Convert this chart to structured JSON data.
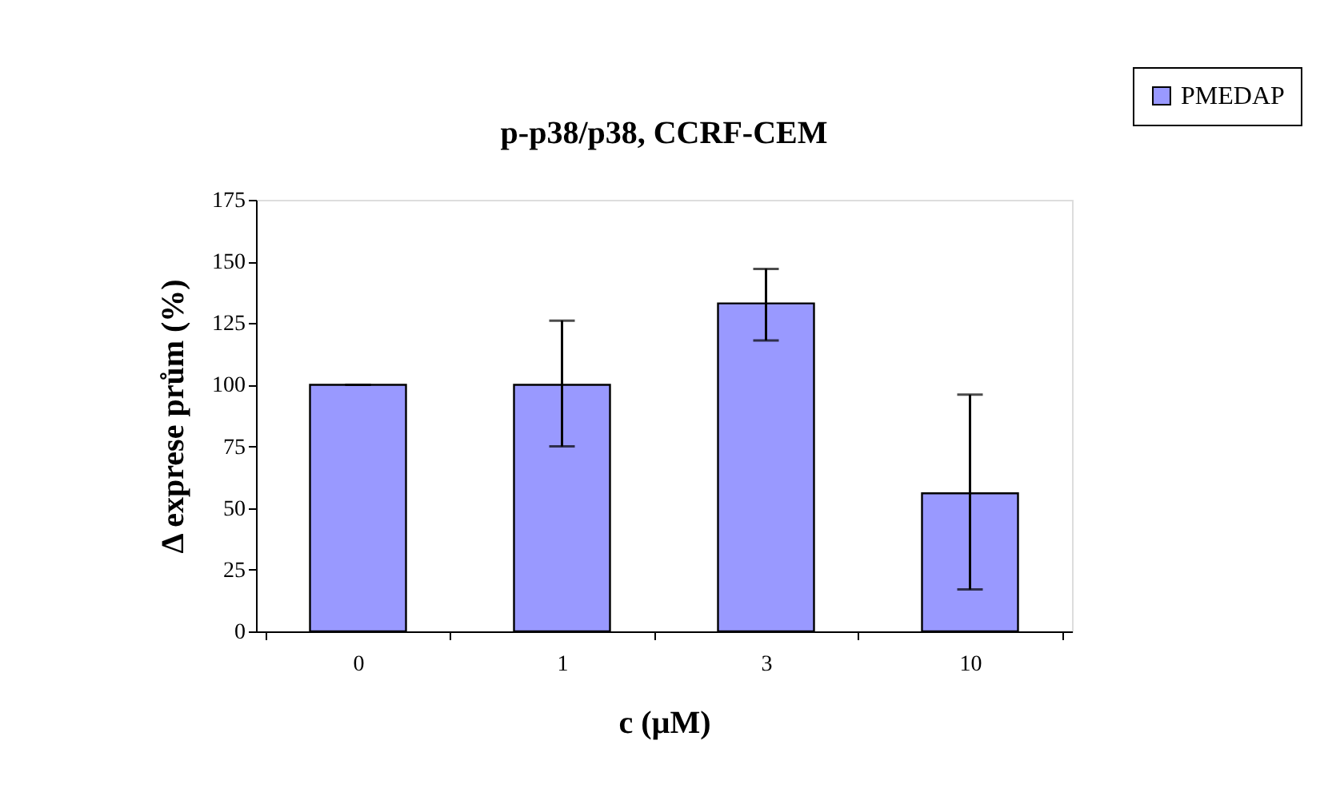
{
  "chart_data": {
    "type": "bar",
    "title": "p-p38/p38, CCRF-CEM",
    "xlabel": "c (µM)",
    "ylabel": "Δ exprese prům (%)",
    "categories": [
      "0",
      "1",
      "3",
      "10"
    ],
    "series": [
      {
        "name": "PMEDAP",
        "color": "#9999ff",
        "values": [
          100,
          100,
          133,
          56
        ],
        "errors": [
          0,
          [
            75,
            126
          ],
          [
            118,
            147
          ],
          [
            17,
            96
          ]
        ]
      }
    ],
    "ylim": [
      0,
      175
    ],
    "yticks": [
      0,
      25,
      50,
      75,
      100,
      125,
      150,
      175
    ],
    "grid": false,
    "legend": "top right"
  }
}
